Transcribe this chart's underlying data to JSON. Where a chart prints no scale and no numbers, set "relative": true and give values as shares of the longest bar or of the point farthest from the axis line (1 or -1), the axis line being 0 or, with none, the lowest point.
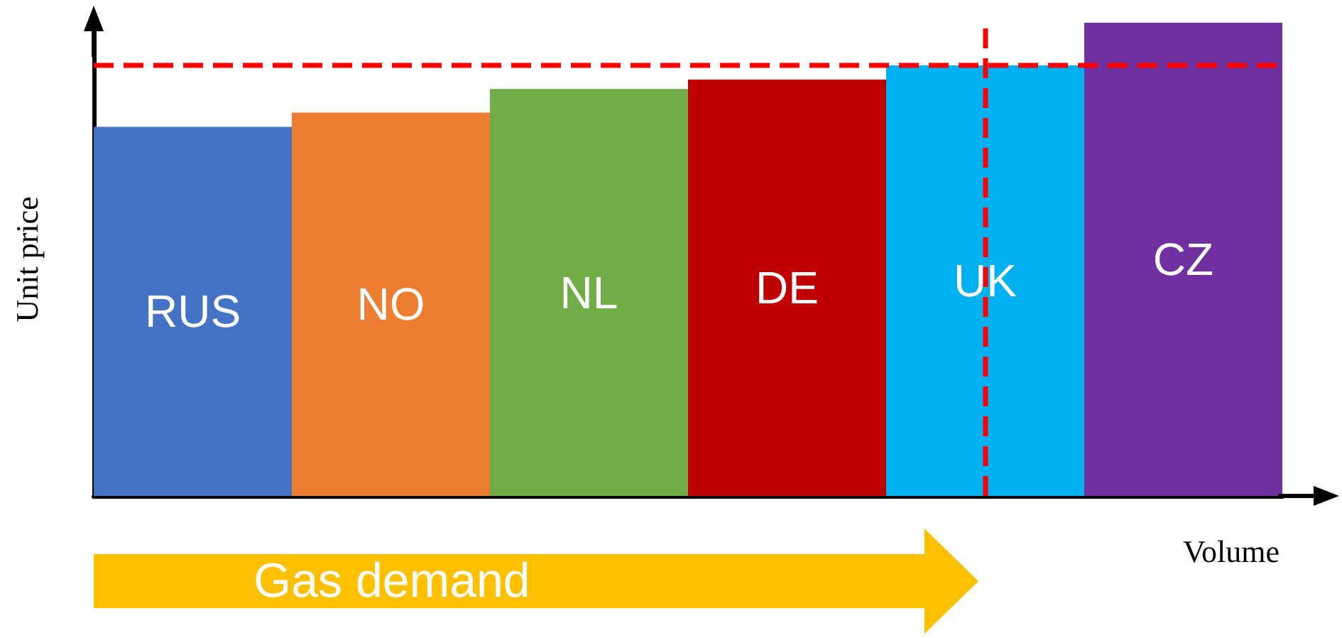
{
  "chart_data": {
    "type": "bar",
    "relative": true,
    "xlabel": "Volume",
    "ylabel": "Unit price",
    "categories": [
      "RUS",
      "NO",
      "NL",
      "DE",
      "UK",
      "CZ"
    ],
    "values": [
      0.78,
      0.81,
      0.86,
      0.88,
      0.91,
      1
    ],
    "colors": [
      "#4472c4",
      "#ed7d31",
      "#70ad47",
      "#c00000",
      "#00b0f0",
      "#7030a0"
    ],
    "ref_lines": [
      {
        "axis": "y",
        "value": 0.91,
        "color": "#ff0000",
        "line_style": "dashed"
      },
      {
        "axis": "x",
        "value": "UK",
        "color": "#ff0000",
        "line_style": "dashed"
      }
    ],
    "annotations": [
      "Gas demand"
    ],
    "grid": false
  }
}
